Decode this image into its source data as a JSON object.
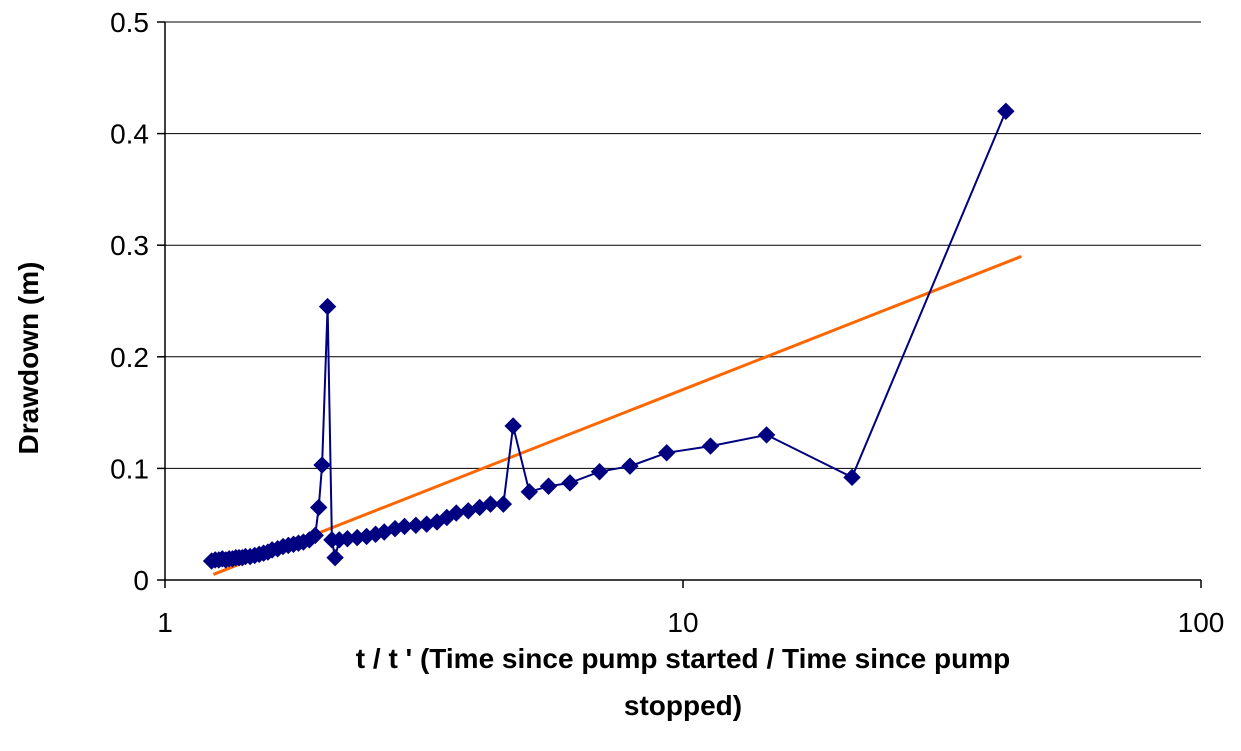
{
  "chart_data": {
    "type": "scatter",
    "title": "",
    "xlabel_lines": [
      "t / t ' (Time since pump started / Time since pump",
      "stopped)"
    ],
    "ylabel": "Drawdown (m)",
    "x_scale": "log",
    "xlim": [
      1,
      100
    ],
    "ylim": [
      0,
      0.5
    ],
    "x_ticks": [
      1,
      10,
      100
    ],
    "x_tick_labels": [
      "1",
      "10",
      "100"
    ],
    "y_ticks": [
      0,
      0.1,
      0.2,
      0.3,
      0.4,
      0.5
    ],
    "y_tick_labels": [
      "0",
      "0.1",
      "0.2",
      "0.3",
      "0.4",
      "0.5"
    ],
    "grid": "horizontal",
    "legend": "none",
    "series": [
      {
        "kind": "line-markers",
        "color": "#000080",
        "marker": "diamond",
        "points": [
          [
            1.23,
            0.017
          ],
          [
            1.25,
            0.018
          ],
          [
            1.27,
            0.018
          ],
          [
            1.29,
            0.019
          ],
          [
            1.31,
            0.018
          ],
          [
            1.33,
            0.019
          ],
          [
            1.35,
            0.019
          ],
          [
            1.37,
            0.02
          ],
          [
            1.39,
            0.02
          ],
          [
            1.41,
            0.02
          ],
          [
            1.43,
            0.021
          ],
          [
            1.46,
            0.021
          ],
          [
            1.49,
            0.022
          ],
          [
            1.52,
            0.023
          ],
          [
            1.55,
            0.024
          ],
          [
            1.58,
            0.025
          ],
          [
            1.61,
            0.027
          ],
          [
            1.65,
            0.028
          ],
          [
            1.69,
            0.03
          ],
          [
            1.73,
            0.031
          ],
          [
            1.77,
            0.032
          ],
          [
            1.81,
            0.033
          ],
          [
            1.85,
            0.034
          ],
          [
            1.9,
            0.036
          ],
          [
            1.95,
            0.04
          ],
          [
            1.98,
            0.065
          ],
          [
            2.01,
            0.103
          ],
          [
            2.06,
            0.245
          ],
          [
            2.1,
            0.036
          ],
          [
            2.13,
            0.02
          ],
          [
            2.17,
            0.036
          ],
          [
            2.25,
            0.037
          ],
          [
            2.35,
            0.038
          ],
          [
            2.45,
            0.039
          ],
          [
            2.55,
            0.041
          ],
          [
            2.65,
            0.043
          ],
          [
            2.78,
            0.046
          ],
          [
            2.9,
            0.048
          ],
          [
            3.05,
            0.049
          ],
          [
            3.2,
            0.05
          ],
          [
            3.35,
            0.052
          ],
          [
            3.5,
            0.056
          ],
          [
            3.65,
            0.06
          ],
          [
            3.85,
            0.062
          ],
          [
            4.05,
            0.065
          ],
          [
            4.25,
            0.068
          ],
          [
            4.5,
            0.068
          ],
          [
            4.7,
            0.138
          ],
          [
            5.05,
            0.079
          ],
          [
            5.5,
            0.084
          ],
          [
            6.05,
            0.087
          ],
          [
            6.9,
            0.097
          ],
          [
            7.9,
            0.102
          ],
          [
            9.3,
            0.114
          ],
          [
            11.3,
            0.12
          ],
          [
            14.5,
            0.13
          ],
          [
            21.2,
            0.092
          ],
          [
            42.0,
            0.42
          ]
        ]
      },
      {
        "kind": "trendline",
        "color": "#FF6600",
        "points": [
          [
            1.24,
            0.005
          ],
          [
            45.0,
            0.29
          ]
        ]
      }
    ]
  }
}
